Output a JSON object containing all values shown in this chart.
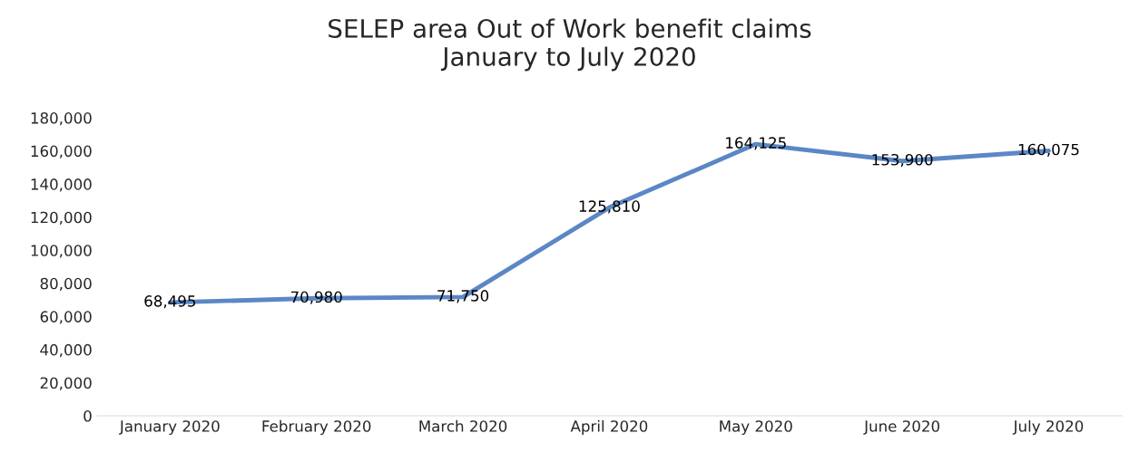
{
  "chart_data": {
    "type": "line",
    "title": "SELEP area Out of Work benefit claims\nJanuary to July 2020",
    "categories": [
      "January 2020",
      "February 2020",
      "March 2020",
      "April 2020",
      "May 2020",
      "June 2020",
      "July 2020"
    ],
    "series": [
      {
        "color": "#5b87c5",
        "values": [
          68495,
          70980,
          71750,
          125810,
          164125,
          153900,
          160075
        ],
        "value_labels": [
          "68,495",
          "70,980",
          "71,750",
          "125,810",
          "164,125",
          "153,900",
          "160,075"
        ]
      }
    ],
    "ylim": [
      0,
      180000
    ],
    "yticks": [
      {
        "value": 0,
        "label": "0"
      },
      {
        "value": 20000,
        "label": "20,000"
      },
      {
        "value": 40000,
        "label": "40,000"
      },
      {
        "value": 60000,
        "label": "60,000"
      },
      {
        "value": 80000,
        "label": "80,000"
      },
      {
        "value": 100000,
        "label": "100,000"
      },
      {
        "value": 120000,
        "label": "120,000"
      },
      {
        "value": 140000,
        "label": "140,000"
      },
      {
        "value": 160000,
        "label": "160,000"
      },
      {
        "value": 180000,
        "label": "180,000"
      }
    ],
    "grid": false,
    "legend": false,
    "marker": "none",
    "line_style": "solid"
  }
}
